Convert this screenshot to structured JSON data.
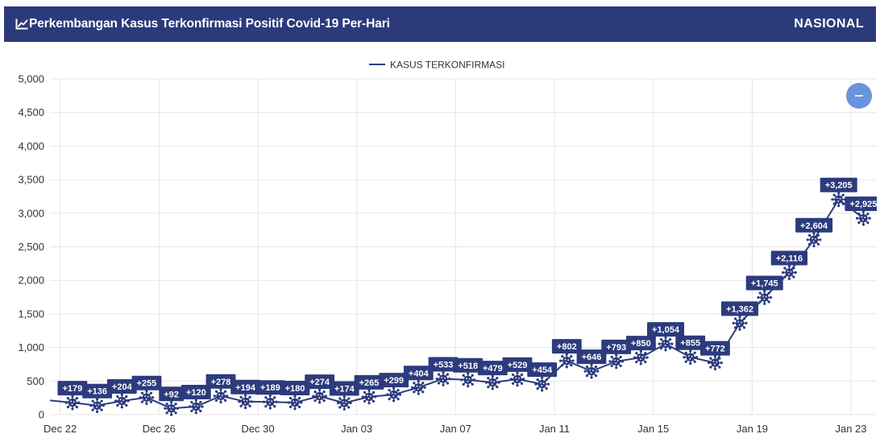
{
  "header": {
    "icon": "chart-line-icon",
    "scope_label": "NASIONAL"
  },
  "zoom_out_button": {
    "icon": "minus-icon"
  },
  "colors": {
    "background": "#ffffff",
    "header_bg": "#2b3a7a",
    "header_text": "#ffffff",
    "series": "#2c3b7d",
    "data_label_bg": "#2c3b7d",
    "data_label_text": "#ffffff",
    "grid": "#e6e6e6",
    "axis_text": "#333333",
    "zoom_button": "#6794dc"
  },
  "chart_data": {
    "type": "line",
    "title": "Perkembangan Kasus Terkonfirmasi Positif Covid-19 Per-Hari",
    "legend": "top-center",
    "grid": true,
    "ylim": [
      0,
      5000
    ],
    "y_ticks": [
      {
        "value": 0,
        "label": "0"
      },
      {
        "value": 500,
        "label": "500"
      },
      {
        "value": 1000,
        "label": "1,000"
      },
      {
        "value": 1500,
        "label": "1,500"
      },
      {
        "value": 2000,
        "label": "2,000"
      },
      {
        "value": 2500,
        "label": "2,500"
      },
      {
        "value": 3000,
        "label": "3,000"
      },
      {
        "value": 3500,
        "label": "3,500"
      },
      {
        "value": 4000,
        "label": "4,000"
      },
      {
        "value": 4500,
        "label": "4,500"
      },
      {
        "value": 5000,
        "label": "5,000"
      }
    ],
    "x": [
      "Dec 21",
      "Dec 22",
      "Dec 23",
      "Dec 24",
      "Dec 25",
      "Dec 26",
      "Dec 27",
      "Dec 28",
      "Dec 29",
      "Dec 30",
      "Dec 31",
      "Jan 01",
      "Jan 02",
      "Jan 03",
      "Jan 04",
      "Jan 05",
      "Jan 06",
      "Jan 07",
      "Jan 08",
      "Jan 09",
      "Jan 10",
      "Jan 11",
      "Jan 12",
      "Jan 13",
      "Jan 14",
      "Jan 15",
      "Jan 16",
      "Jan 17",
      "Jan 18",
      "Jan 19",
      "Jan 20",
      "Jan 21",
      "Jan 22",
      "Jan 23"
    ],
    "x_ticks": [
      "Dec 22",
      "Dec 26",
      "Dec 30",
      "Jan 03",
      "Jan 07",
      "Jan 11",
      "Jan 15",
      "Jan 19",
      "Jan 23"
    ],
    "series": [
      {
        "name": "KASUS TERKONFIRMASI",
        "marker": "virus-icon",
        "values": [
          215,
          179,
          136,
          204,
          255,
          92,
          120,
          278,
          194,
          189,
          180,
          274,
          174,
          265,
          299,
          404,
          533,
          518,
          479,
          529,
          454,
          802,
          646,
          793,
          850,
          1054,
          855,
          772,
          1362,
          1745,
          2116,
          2604,
          3205,
          2925
        ],
        "data_labels": [
          null,
          "+179",
          "+136",
          "+204",
          "+255",
          "+92",
          "+120",
          "+278",
          "+194",
          "+189",
          "+180",
          "+274",
          "+174",
          "+265",
          "+299",
          "+404",
          "+533",
          "+518",
          "+479",
          "+529",
          "+454",
          "+802",
          "+646",
          "+793",
          "+850",
          "+1,054",
          "+855",
          "+772",
          "+1,362",
          "+1,745",
          "+2,116",
          "+2,604",
          "+3,205",
          "+2,925"
        ]
      }
    ]
  }
}
